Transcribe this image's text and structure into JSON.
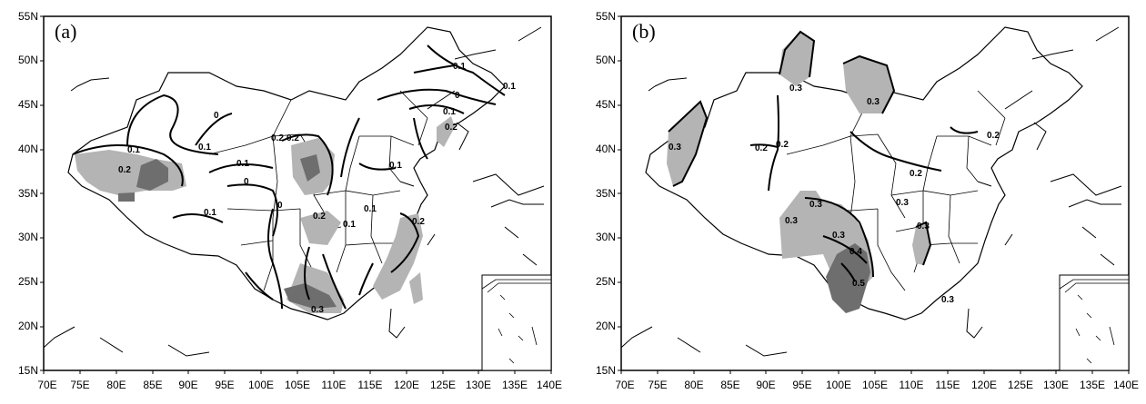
{
  "panels": [
    {
      "id": "a",
      "label": "(a)",
      "x_ticks": [
        "70E",
        "75E",
        "80E",
        "85E",
        "90E",
        "95E",
        "100E",
        "105E",
        "110E",
        "115E",
        "120E",
        "125E",
        "130E",
        "135E",
        "140E"
      ],
      "y_ticks": [
        "15N",
        "20N",
        "25N",
        "30N",
        "35N",
        "40N",
        "45N",
        "50N",
        "55N"
      ],
      "contour_labels": [
        "0.1",
        "0.2",
        "0",
        "0.1",
        "0.1",
        "0",
        "0.1",
        "0",
        "0.2",
        "0.2",
        "0.1",
        "0.1",
        "0",
        "0.1",
        "0.2",
        "0.2",
        "0.1",
        "0.1",
        "0.2",
        "0.3",
        "0.1"
      ]
    },
    {
      "id": "b",
      "label": "(b)",
      "x_ticks": [
        "70E",
        "75E",
        "80E",
        "85E",
        "90E",
        "95E",
        "100E",
        "105E",
        "110E",
        "115E",
        "120E",
        "125E",
        "130E",
        "135E",
        "140E"
      ],
      "y_ticks": [
        "15N",
        "20N",
        "25N",
        "30N",
        "35N",
        "40N",
        "45N",
        "50N",
        "55N"
      ],
      "contour_labels": [
        "0.3",
        "0.3",
        "0.3",
        "0.2",
        "0.2",
        "0.2",
        "0.2",
        "0.3",
        "0.3",
        "0.3",
        "0.3",
        "0.4",
        "0.5",
        "0.3",
        "0.3"
      ]
    }
  ],
  "colors": {
    "light_shade": "#b4b4b4",
    "dark_shade": "#6e6e6e",
    "line": "#000000"
  }
}
